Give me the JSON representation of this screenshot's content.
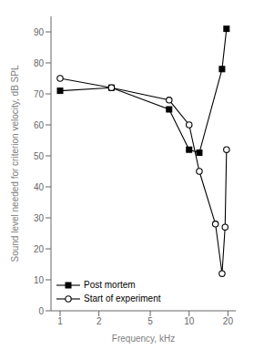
{
  "chart_data": {
    "type": "line",
    "xlabel": "Frequency, kHz",
    "ylabel": "Sound level needed for criterion velocity, dB SPL",
    "log": "x",
    "xlim": [
      0.85,
      23
    ],
    "ylim": [
      0,
      95
    ],
    "xticks": [
      1,
      2,
      5,
      10,
      20
    ],
    "yticks": [
      0,
      10,
      20,
      30,
      40,
      50,
      60,
      70,
      80,
      90
    ],
    "grid": false,
    "legend": "lower left",
    "series": [
      {
        "name": "Post mortem",
        "color": "#000000",
        "marker": "square",
        "x": [
          1,
          2.5,
          7,
          10,
          12,
          18,
          19.5
        ],
        "values": [
          71,
          72,
          65,
          52,
          51,
          78,
          91
        ]
      },
      {
        "name": "Start of experiment",
        "color": "#000000",
        "marker": "circle",
        "x": [
          1,
          2.5,
          7,
          10,
          12,
          16,
          18,
          19,
          19.5
        ],
        "values": [
          75,
          72,
          68,
          60,
          45,
          28,
          12,
          27,
          52
        ]
      }
    ]
  }
}
